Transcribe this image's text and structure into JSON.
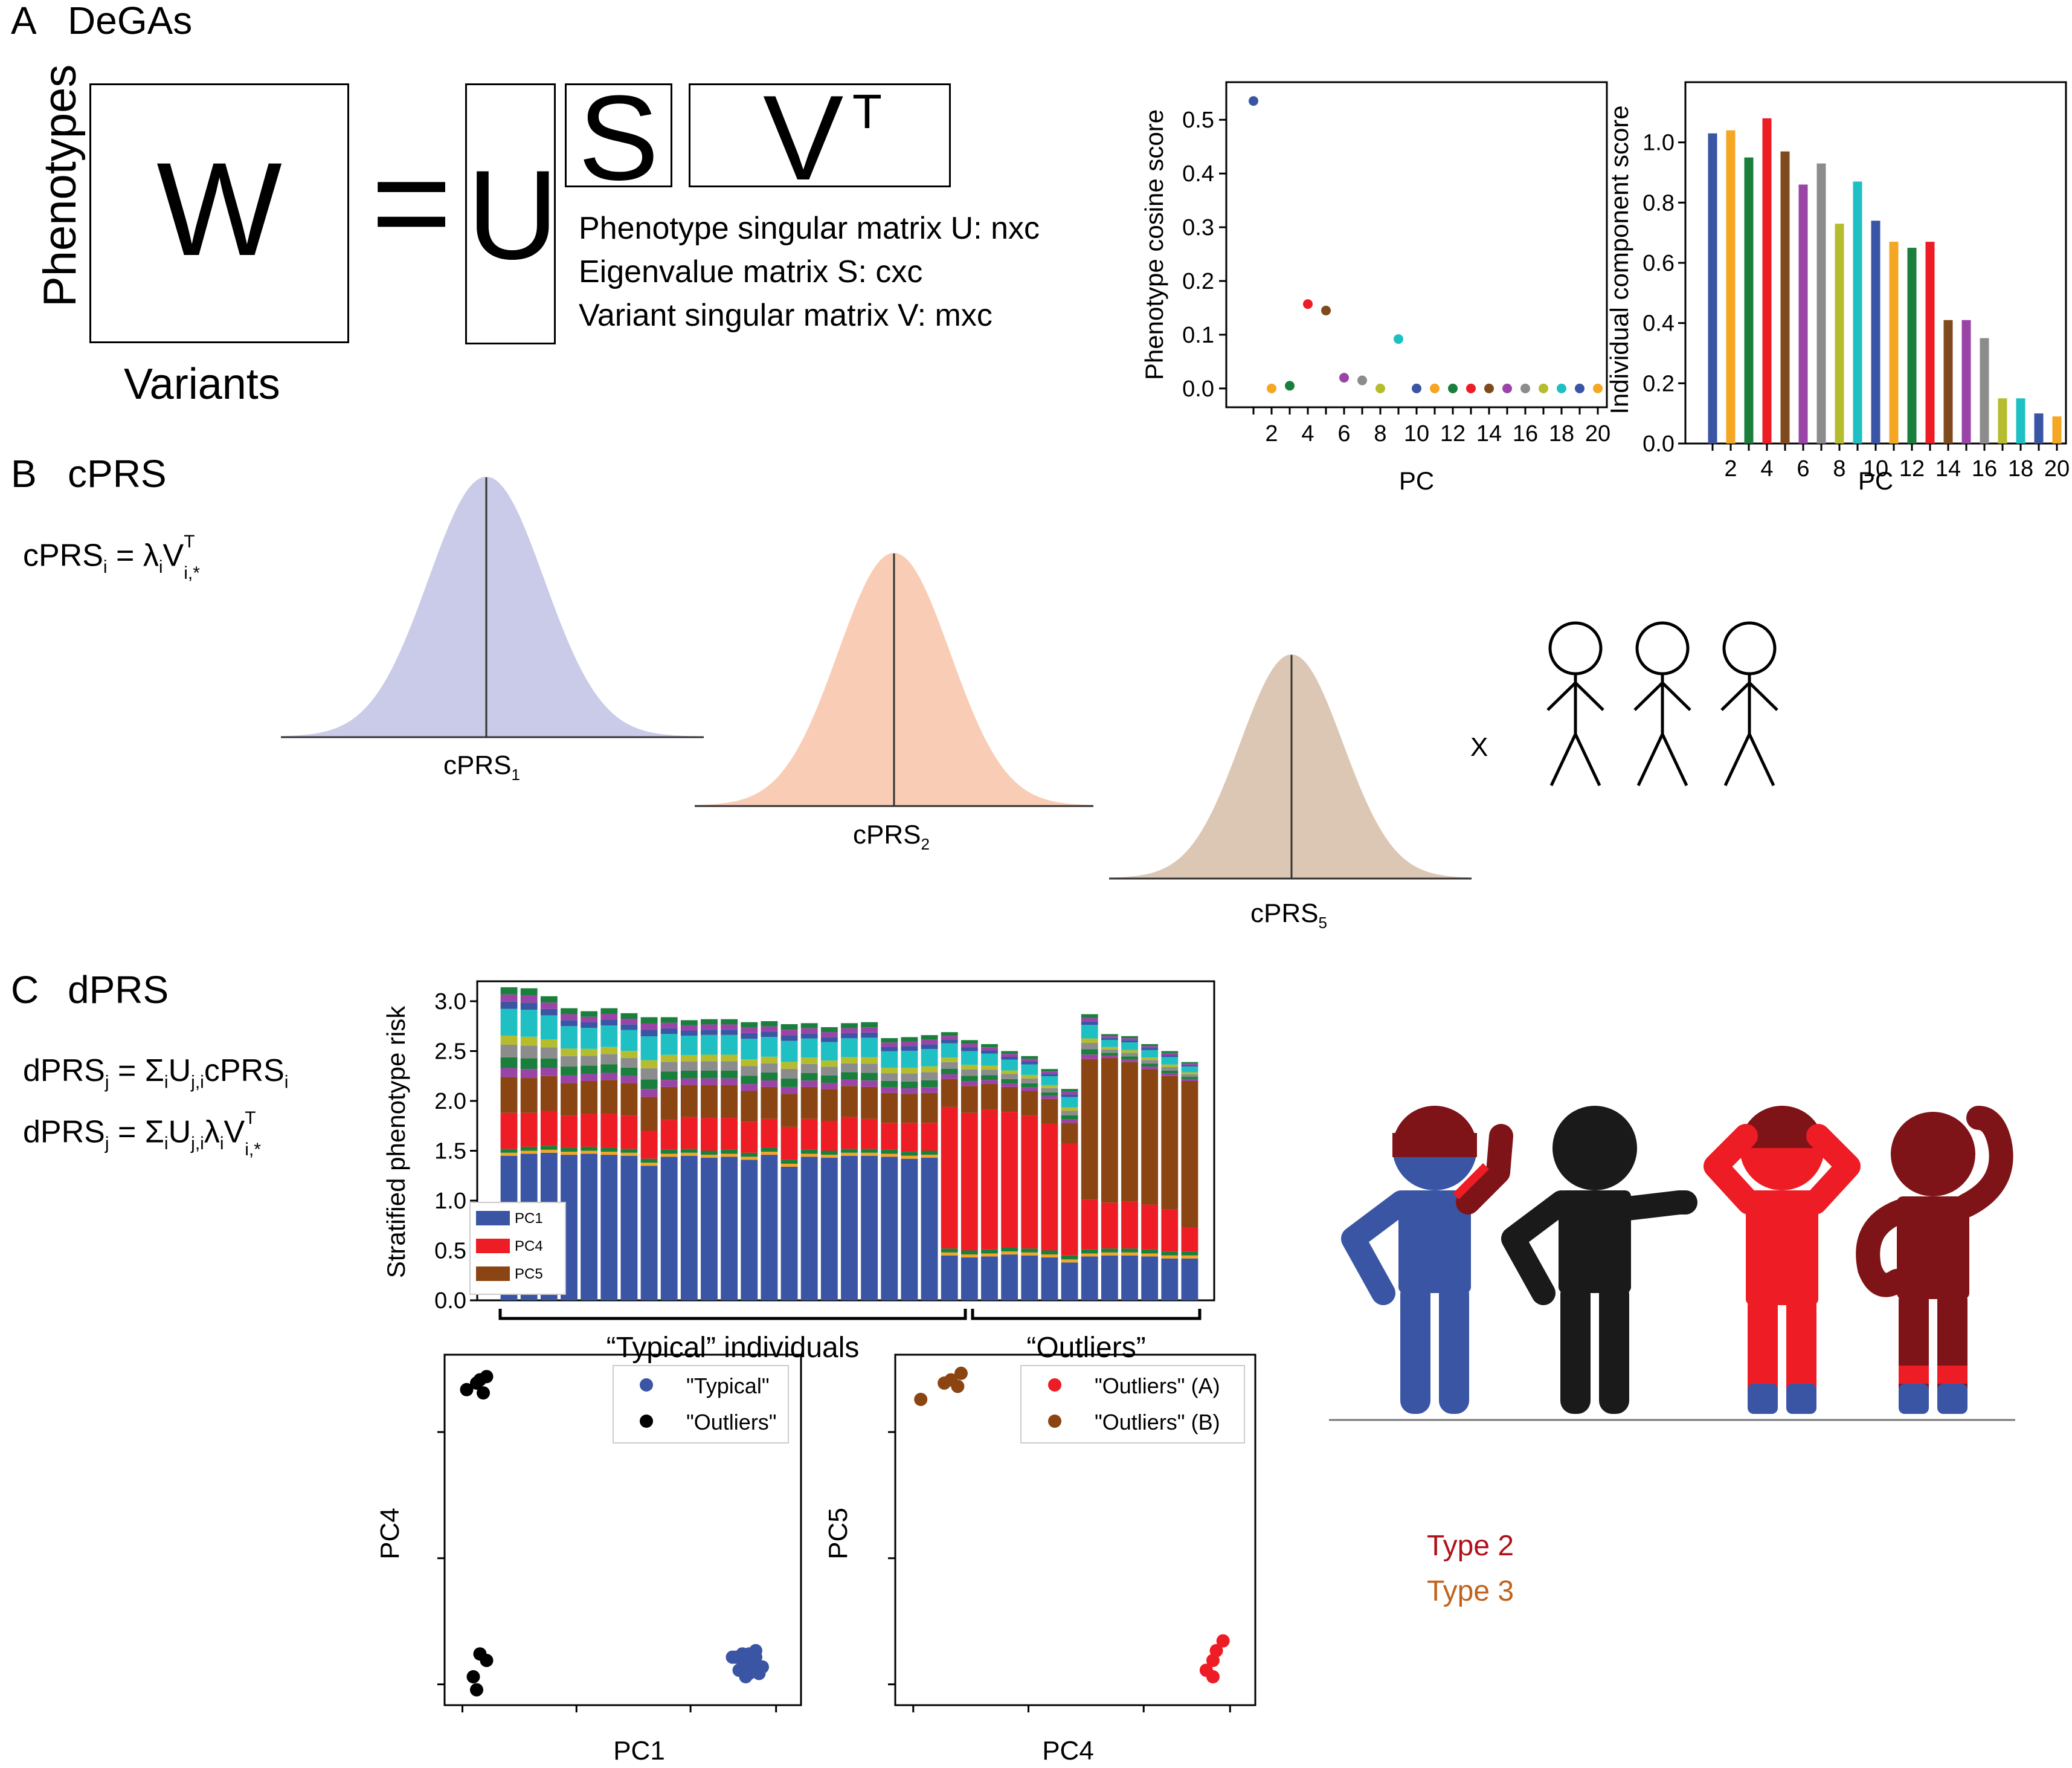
{
  "panelA": {
    "label": "A",
    "title": "DeGAs",
    "ylabel": "Phenotypes",
    "xlabel": "Variants",
    "matrix_W": "W",
    "equals": "=",
    "matrix_U": "U",
    "matrix_S": "S",
    "matrix_V": "V",
    "superscript_T": "T",
    "desc": [
      "Phenotype singular matrix U: nxc",
      "Eigenvalue matrix S: cxc",
      "Variant singular matrix V: mxc"
    ]
  },
  "panelB": {
    "label": "B",
    "title": "cPRS",
    "formula": {
      "lhs": "cPRS",
      "lhs_sub": "i",
      "eq": " = λ",
      "lambda_sub": "i",
      "v": "V",
      "v_sup": "T",
      "v_sub": "i,*"
    },
    "curves": [
      {
        "label": "cPRS",
        "sub": "1",
        "color": "#c9cbe8"
      },
      {
        "label": "cPRS",
        "sub": "2",
        "color": "#f9cdb5"
      },
      {
        "label": "cPRS",
        "sub": "5",
        "color": "#dcc7b5"
      }
    ],
    "times": "X"
  },
  "panelC": {
    "label": "C",
    "title": "dPRS",
    "formula1": {
      "a": "dPRS",
      "a_sub": "j",
      "b": " = Σ",
      "b_sub": "i",
      "c": "U",
      "c_sub": "j,i",
      "d": "cPRS",
      "d_sub": "i"
    },
    "formula2": {
      "a": "dPRS",
      "a_sub": "j",
      "b": " = Σ",
      "b_sub": "i",
      "c": "U",
      "c_sub": "j,i",
      "d": "λ",
      "d_sub": "i",
      "e": "V",
      "e_sup": "T",
      "e_sub": "i,*"
    },
    "bracket_typical": "“Typical” individuals",
    "bracket_outliers": "“Outliers”",
    "type_labels": [
      {
        "text": "Type 2",
        "color": "#b0121b"
      },
      {
        "text": "Type 3",
        "color": "#c0631e"
      }
    ]
  },
  "colors": {
    "pc": [
      "#3a55a4",
      "#f5a623",
      "#1a7f3c",
      "#ee1c25",
      "#7f4a1e",
      "#9b44a8",
      "#8c8c8c",
      "#b5bd2e",
      "#1ec0c4",
      "#3a55a4",
      "#f5a623",
      "#1a7f3c",
      "#ee1c25",
      "#7f4a1e",
      "#9b44a8",
      "#8c8c8c",
      "#b5bd2e",
      "#1ec0c4",
      "#3a55a4",
      "#f5a623"
    ],
    "blue": "#3a55a4",
    "red": "#ee1c25",
    "brown": "#8b4513",
    "darkred": "#7f1418",
    "black": "#1a1a1a"
  },
  "chart_data": [
    {
      "type": "scatter",
      "name": "cosine",
      "x": [
        1,
        2,
        3,
        4,
        5,
        6,
        7,
        8,
        9,
        10,
        11,
        12,
        13,
        14,
        15,
        16,
        17,
        18,
        19,
        20
      ],
      "y": [
        0.535,
        0.0,
        0.005,
        0.157,
        0.145,
        0.02,
        0.015,
        0.0,
        0.092,
        0.0,
        0.0,
        0.0,
        0.0,
        0.0,
        0.0,
        0.0,
        0.0,
        0.0,
        0.0,
        0.0
      ],
      "xlabel": "PC",
      "ylabel": "Phenotype cosine score",
      "yticks": [
        "0.0",
        "0.1",
        "0.2",
        "0.3",
        "0.4",
        "0.5"
      ],
      "xticks": [
        "2",
        "4",
        "6",
        "8",
        "10",
        "12",
        "14",
        "16",
        "18",
        "20"
      ],
      "ylim": [
        -0.035,
        0.57
      ],
      "xlim": [
        -0.5,
        20.5
      ]
    },
    {
      "type": "bar",
      "name": "component",
      "categories": [
        1,
        2,
        3,
        4,
        5,
        6,
        7,
        8,
        9,
        10,
        11,
        12,
        13,
        14,
        15,
        16,
        17,
        18,
        19,
        20
      ],
      "values": [
        1.03,
        1.04,
        0.95,
        1.08,
        0.97,
        0.86,
        0.93,
        0.73,
        0.87,
        0.74,
        0.67,
        0.65,
        0.67,
        0.41,
        0.41,
        0.35,
        0.15,
        0.15,
        0.1,
        0.09
      ],
      "xlabel": "PC",
      "ylabel": "Individual component score",
      "yticks": [
        "0.0",
        "0.2",
        "0.4",
        "0.6",
        "0.8",
        "1.0"
      ],
      "xticks": [
        "2",
        "4",
        "6",
        "8",
        "10",
        "12",
        "14",
        "16",
        "18",
        "20"
      ],
      "ylim": [
        0,
        1.2
      ],
      "xlim": [
        -0.5,
        20.5
      ]
    },
    {
      "type": "bar",
      "name": "stacked",
      "stacked": true,
      "ylabel": "Stratified phenotype risk",
      "yticks": [
        "0.0",
        "0.5",
        "1.0",
        "1.5",
        "2.0",
        "2.5",
        "3.0"
      ],
      "ylim": [
        0,
        3.2
      ],
      "legend": [
        "PC1",
        "PC4",
        "PC5"
      ],
      "legend_colors": [
        "#3a55a4",
        "#ee1c25",
        "#8b4513"
      ],
      "series": [
        {
          "name": "PC1",
          "values": [
            1.45,
            1.47,
            1.48,
            1.46,
            1.47,
            1.46,
            1.45,
            1.35,
            1.44,
            1.45,
            1.43,
            1.44,
            1.41,
            1.46,
            1.34,
            1.44,
            1.43,
            1.45,
            1.45,
            1.44,
            1.42,
            1.43,
            0.45,
            0.43,
            0.44,
            0.46,
            0.45,
            0.43,
            0.38,
            0.44,
            0.45,
            0.45,
            0.44,
            0.42,
            0.42
          ]
        },
        {
          "name": "PC4",
          "values": [
            0.36,
            0.34,
            0.35,
            0.32,
            0.33,
            0.34,
            0.33,
            0.28,
            0.3,
            0.32,
            0.33,
            0.32,
            0.31,
            0.29,
            0.33,
            0.31,
            0.3,
            0.32,
            0.3,
            0.27,
            0.29,
            0.28,
            1.42,
            1.38,
            1.4,
            1.36,
            1.33,
            1.27,
            1.12,
            0.5,
            0.46,
            0.47,
            0.45,
            0.42,
            0.24
          ]
        },
        {
          "name": "PC5",
          "values": [
            0.36,
            0.35,
            0.35,
            0.33,
            0.33,
            0.34,
            0.33,
            0.34,
            0.33,
            0.32,
            0.33,
            0.33,
            0.31,
            0.32,
            0.33,
            0.32,
            0.32,
            0.31,
            0.32,
            0.3,
            0.29,
            0.3,
            0.28,
            0.27,
            0.26,
            0.25,
            0.25,
            0.25,
            0.21,
            1.41,
            1.45,
            1.4,
            1.36,
            1.34,
            1.47
          ]
        },
        {
          "name": "other",
          "values": [
            0.9,
            0.9,
            0.8,
            0.75,
            0.7,
            0.72,
            0.7,
            0.8,
            0.7,
            0.65,
            0.66,
            0.66,
            0.69,
            0.66,
            0.7,
            0.64,
            0.62,
            0.63,
            0.65,
            0.55,
            0.57,
            0.58,
            0.47,
            0.46,
            0.4,
            0.36,
            0.35,
            0.3,
            0.34,
            0.45,
            0.24,
            0.26,
            0.25,
            0.25,
            0.19
          ]
        }
      ]
    },
    {
      "type": "scatter",
      "name": "pc1pc4",
      "xlabel": "PC1",
      "ylabel": "PC4",
      "legend": [
        "\"Typical\"",
        "\"Outliers\""
      ],
      "legend_colors": [
        "#3a55a4",
        "#000000"
      ],
      "series": [
        {
          "name": "\"Typical\"",
          "x": [
            0.83,
            0.86,
            0.88,
            0.9,
            0.85,
            0.88,
            0.91,
            0.87,
            0.89,
            0.9,
            0.84,
            0.92,
            0.86,
            0.88,
            0.9
          ],
          "y": [
            0.11,
            0.1,
            0.12,
            0.09,
            0.07,
            0.08,
            0.06,
            0.05,
            0.1,
            0.13,
            0.11,
            0.08,
            0.12,
            0.06,
            0.11
          ]
        },
        {
          "name": "\"Outliers\"",
          "x": [
            0.03,
            0.06,
            0.07,
            0.09,
            0.08,
            0.07,
            0.09,
            0.05,
            0.06
          ],
          "y": [
            0.93,
            0.95,
            0.96,
            0.97,
            0.92,
            0.12,
            0.1,
            0.05,
            0.01
          ]
        }
      ],
      "xlim": [
        0,
        1
      ],
      "ylim": [
        0,
        1
      ]
    },
    {
      "type": "scatter",
      "name": "pc4pc5",
      "xlabel": "PC4",
      "ylabel": "PC5",
      "legend": [
        "\"Outliers\" (A)",
        "\"Outliers\" (B)"
      ],
      "legend_colors": [
        "#ee1c25",
        "#8b4513"
      ],
      "series": [
        {
          "name": "\"Outliers\" (A)",
          "x": [
            0.89,
            0.91,
            0.92,
            0.94,
            0.91
          ],
          "y": [
            0.07,
            0.1,
            0.13,
            0.16,
            0.05
          ]
        },
        {
          "name": "\"Outliers\" (B)",
          "x": [
            0.04,
            0.11,
            0.13,
            0.15,
            0.16
          ],
          "y": [
            0.9,
            0.95,
            0.96,
            0.94,
            0.98
          ]
        }
      ],
      "xlim": [
        0,
        1
      ],
      "ylim": [
        0,
        1
      ]
    }
  ]
}
